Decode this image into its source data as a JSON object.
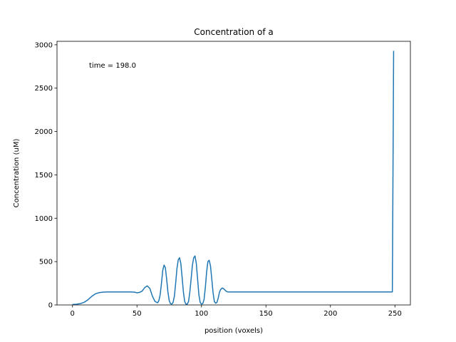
{
  "chart_data": {
    "type": "line",
    "title": "Concentration of a",
    "xlabel": "position (voxels)",
    "ylabel": "Concentration (uM)",
    "annotation": "time = 198.0",
    "xlim": [
      -12,
      262
    ],
    "ylim": [
      0,
      3040
    ],
    "xticks": [
      0,
      50,
      100,
      150,
      200,
      250
    ],
    "yticks": [
      0,
      500,
      1000,
      1500,
      2000,
      2500,
      3000
    ],
    "grid": false,
    "series_color": "#1f77b4",
    "series": [
      {
        "x": [
          0,
          3,
          6,
          9,
          12,
          15,
          18,
          21,
          24,
          27,
          30,
          35,
          40,
          45,
          48,
          50,
          52,
          54,
          56,
          58,
          60,
          62,
          64,
          66,
          67,
          68,
          69,
          70,
          71,
          72,
          73,
          74,
          75,
          76,
          77,
          78,
          79,
          80,
          81,
          82,
          83,
          84,
          85,
          86,
          87,
          88,
          89,
          90,
          91,
          92,
          93,
          94,
          95,
          96,
          97,
          98,
          99,
          100,
          101,
          102,
          103,
          104,
          105,
          106,
          107,
          108,
          109,
          110,
          111,
          112,
          113,
          114,
          115,
          116,
          117,
          118,
          119,
          120,
          121,
          122,
          123,
          124,
          125,
          126,
          127,
          128,
          129,
          130,
          131,
          132,
          133,
          134,
          135,
          136,
          137,
          138,
          140,
          142,
          145,
          150,
          160,
          180,
          200,
          220,
          240,
          247,
          248,
          249
        ],
        "y": [
          5,
          8,
          15,
          30,
          60,
          100,
          130,
          143,
          148,
          150,
          150,
          150,
          150,
          150,
          148,
          140,
          145,
          160,
          200,
          220,
          190,
          100,
          40,
          25,
          50,
          120,
          250,
          400,
          460,
          430,
          300,
          150,
          50,
          15,
          10,
          30,
          100,
          250,
          420,
          520,
          545,
          480,
          320,
          150,
          40,
          10,
          10,
          40,
          150,
          300,
          460,
          545,
          565,
          480,
          300,
          120,
          30,
          10,
          15,
          60,
          200,
          380,
          500,
          515,
          450,
          300,
          140,
          40,
          20,
          30,
          80,
          150,
          180,
          195,
          190,
          175,
          160,
          152,
          150,
          150,
          150,
          150,
          150,
          150,
          150,
          150,
          150,
          150,
          150,
          150,
          150,
          150,
          150,
          150,
          150,
          150,
          150,
          150,
          150,
          150,
          150,
          150,
          150,
          150,
          150,
          150,
          150,
          2930
        ]
      }
    ]
  }
}
